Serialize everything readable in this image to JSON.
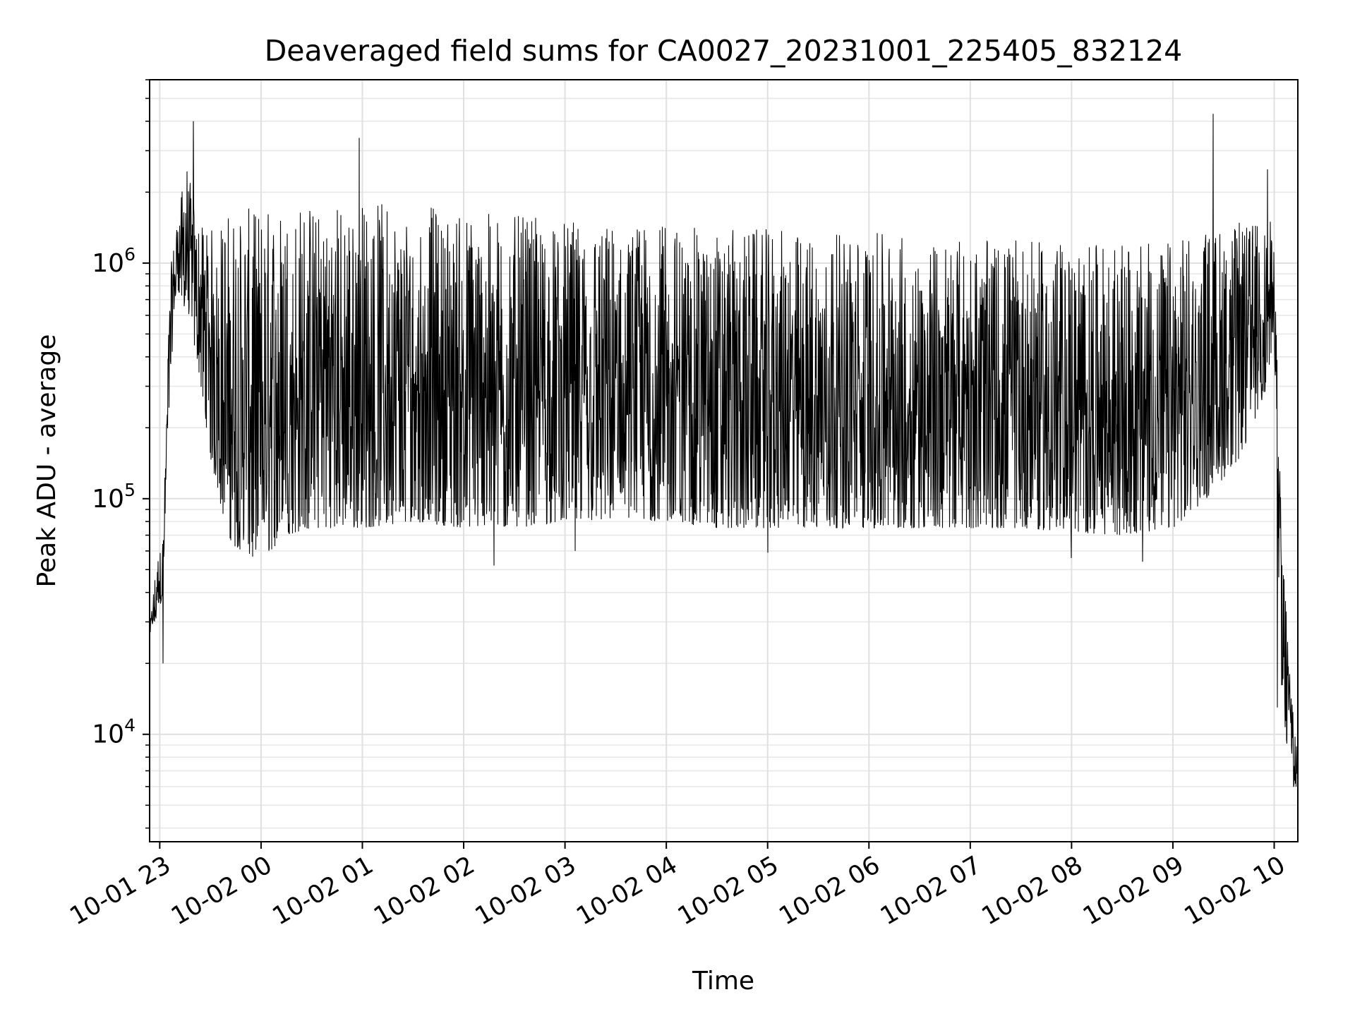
{
  "chart_data": {
    "type": "line",
    "title": "Deaveraged field sums for CA0027_20231001_225405_832124",
    "xlabel": "Time",
    "ylabel": "Peak ADU - average",
    "x_range": [
      "2023-10-01 22:54",
      "2023-10-02 10:14"
    ],
    "x_ticks": [
      {
        "label": "10-01 23",
        "time": "2023-10-01 23:00"
      },
      {
        "label": "10-02 00",
        "time": "2023-10-02 00:00"
      },
      {
        "label": "10-02 01",
        "time": "2023-10-02 01:00"
      },
      {
        "label": "10-02 02",
        "time": "2023-10-02 02:00"
      },
      {
        "label": "10-02 03",
        "time": "2023-10-02 03:00"
      },
      {
        "label": "10-02 04",
        "time": "2023-10-02 04:00"
      },
      {
        "label": "10-02 05",
        "time": "2023-10-02 05:00"
      },
      {
        "label": "10-02 06",
        "time": "2023-10-02 06:00"
      },
      {
        "label": "10-02 07",
        "time": "2023-10-02 07:00"
      },
      {
        "label": "10-02 08",
        "time": "2023-10-02 08:00"
      },
      {
        "label": "10-02 09",
        "time": "2023-10-02 09:00"
      },
      {
        "label": "10-02 10",
        "time": "2023-10-02 10:00"
      }
    ],
    "y_scale": "log",
    "ylim": [
      3500,
      6000000
    ],
    "y_ticks": [
      {
        "base": "10",
        "exp": "4",
        "value": 10000
      },
      {
        "base": "10",
        "exp": "5",
        "value": 100000
      },
      {
        "base": "10",
        "exp": "6",
        "value": 1000000
      }
    ],
    "grid": true,
    "series": [
      {
        "color": "#000000",
        "envelope": [
          {
            "time": "2023-10-01 22:54",
            "low": 25000,
            "high": 28000
          },
          {
            "time": "2023-10-01 22:58",
            "low": 30000,
            "high": 55000
          },
          {
            "time": "2023-10-01 23:02",
            "low": 40000,
            "high": 70000
          },
          {
            "time": "2023-10-01 23:06",
            "low": 300000,
            "high": 900000
          },
          {
            "time": "2023-10-01 23:10",
            "low": 800000,
            "high": 1500000
          },
          {
            "time": "2023-10-01 23:16",
            "low": 600000,
            "high": 2700000
          },
          {
            "time": "2023-10-01 23:22",
            "low": 400000,
            "high": 1500000
          },
          {
            "time": "2023-10-01 23:30",
            "low": 150000,
            "high": 1400000
          },
          {
            "time": "2023-10-01 23:40",
            "low": 70000,
            "high": 1700000
          },
          {
            "time": "2023-10-01 23:50",
            "low": 55000,
            "high": 1700000
          },
          {
            "time": "2023-10-02 00:00",
            "low": 55000,
            "high": 1750000
          },
          {
            "time": "2023-10-02 00:15",
            "low": 70000,
            "high": 1800000
          },
          {
            "time": "2023-10-02 00:30",
            "low": 75000,
            "high": 1850000
          },
          {
            "time": "2023-10-02 01:00",
            "low": 75000,
            "high": 1850000
          },
          {
            "time": "2023-10-02 01:30",
            "low": 80000,
            "high": 1800000
          },
          {
            "time": "2023-10-02 02:00",
            "low": 75000,
            "high": 1700000
          },
          {
            "time": "2023-10-02 02:30",
            "low": 75000,
            "high": 1600000
          },
          {
            "time": "2023-10-02 03:00",
            "low": 80000,
            "high": 1500000
          },
          {
            "time": "2023-10-02 03:30",
            "low": 80000,
            "high": 1500000
          },
          {
            "time": "2023-10-02 04:00",
            "low": 80000,
            "high": 1450000
          },
          {
            "time": "2023-10-02 04:30",
            "low": 75000,
            "high": 1400000
          },
          {
            "time": "2023-10-02 05:00",
            "low": 75000,
            "high": 1400000
          },
          {
            "time": "2023-10-02 05:30",
            "low": 75000,
            "high": 1350000
          },
          {
            "time": "2023-10-02 06:00",
            "low": 75000,
            "high": 1350000
          },
          {
            "time": "2023-10-02 06:30",
            "low": 75000,
            "high": 1300000
          },
          {
            "time": "2023-10-02 07:00",
            "low": 75000,
            "high": 1250000
          },
          {
            "time": "2023-10-02 07:30",
            "low": 75000,
            "high": 1250000
          },
          {
            "time": "2023-10-02 08:00",
            "low": 72000,
            "high": 1200000
          },
          {
            "time": "2023-10-02 08:30",
            "low": 70000,
            "high": 1200000
          },
          {
            "time": "2023-10-02 09:00",
            "low": 75000,
            "high": 1250000
          },
          {
            "time": "2023-10-02 09:20",
            "low": 100000,
            "high": 1400000
          },
          {
            "time": "2023-10-02 09:40",
            "low": 150000,
            "high": 1500000
          },
          {
            "time": "2023-10-02 09:56",
            "low": 300000,
            "high": 1600000
          },
          {
            "time": "2023-10-02 10:00",
            "low": 500000,
            "high": 1400000
          },
          {
            "time": "2023-10-02 10:04",
            "low": 15000,
            "high": 90000
          },
          {
            "time": "2023-10-02 10:08",
            "low": 8000,
            "high": 30000
          },
          {
            "time": "2023-10-02 10:14",
            "low": 4800,
            "high": 8000
          }
        ],
        "peaks": [
          {
            "time": "2023-10-01 23:20",
            "value": 4000000
          },
          {
            "time": "2023-10-02 00:58",
            "value": 3400000
          },
          {
            "time": "2023-10-02 09:24",
            "value": 4300000
          },
          {
            "time": "2023-10-02 09:56",
            "value": 2500000
          }
        ],
        "dips": [
          {
            "time": "2023-10-01 23:02",
            "value": 20000
          },
          {
            "time": "2023-10-02 02:18",
            "value": 52000
          },
          {
            "time": "2023-10-02 03:06",
            "value": 60000
          },
          {
            "time": "2023-10-02 05:00",
            "value": 59000
          },
          {
            "time": "2023-10-02 08:00",
            "value": 56000
          },
          {
            "time": "2023-10-02 08:42",
            "value": 54000
          },
          {
            "time": "2023-10-02 10:02",
            "value": 13000
          }
        ]
      }
    ]
  }
}
